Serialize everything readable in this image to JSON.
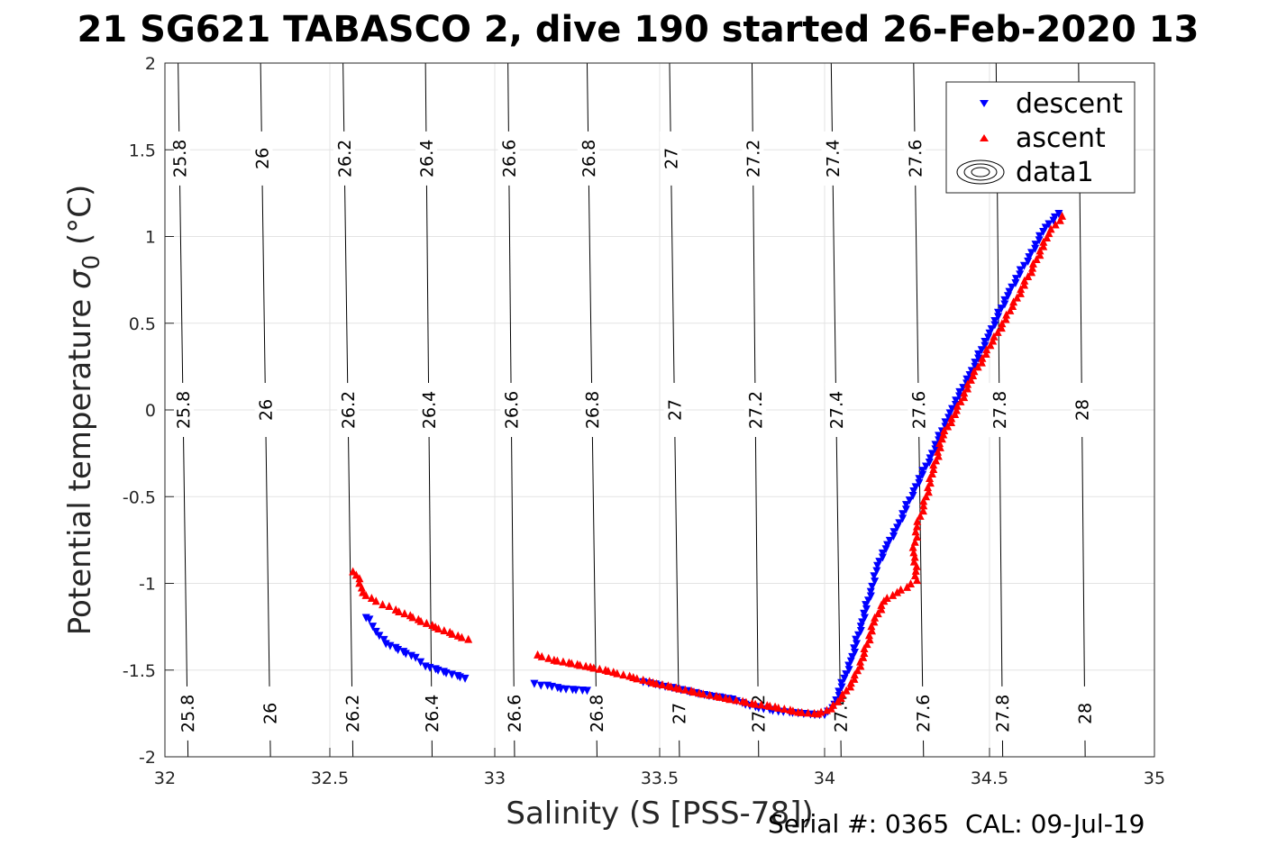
{
  "chart_data": {
    "type": "scatter",
    "title": "21 SG621 TABASCO 2, dive 190 started 26-Feb-2020 13",
    "xlabel": "Salinity (S [PSS-78])",
    "ylabel": "Potential temperature",
    "ylabel_symbol": "σ",
    "ylabel_subscript": "0",
    "ylabel_unit": "(°C)",
    "xlim": [
      32,
      35
    ],
    "ylim": [
      -2,
      2
    ],
    "x_ticks": [
      "32",
      "32.5",
      "33",
      "33.5",
      "34",
      "34.5",
      "35"
    ],
    "y_ticks": [
      "-2",
      "-1.5",
      "-1",
      "-0.5",
      "0",
      "0.5",
      "1",
      "1.5",
      "2"
    ],
    "grid": true,
    "legend_position": "top-right",
    "legend": [
      "descent",
      "ascent",
      "data1"
    ],
    "contours": {
      "levels": [
        25.8,
        26,
        26.2,
        26.4,
        26.6,
        26.8,
        27,
        27.2,
        27.4,
        27.6,
        27.8,
        28
      ],
      "level_labels": [
        "25.8",
        "26",
        "26.2",
        "26.4",
        "26.6",
        "26.8",
        "27",
        "27.2",
        "27.4",
        "27.6",
        "27.8",
        "28"
      ],
      "salinity_at_temp_minus2": [
        32.07,
        32.32,
        32.57,
        32.81,
        33.06,
        33.31,
        33.56,
        33.8,
        34.05,
        34.3,
        34.54,
        34.79
      ],
      "salinity_at_temp_2": [
        32.04,
        32.29,
        32.54,
        32.79,
        33.04,
        33.28,
        33.53,
        33.78,
        34.02,
        34.27,
        34.52,
        34.77
      ]
    },
    "series": [
      {
        "name": "descent",
        "color": "#0000ff",
        "marker": "triangle-down",
        "points": [
          [
            32.61,
            -1.2
          ],
          [
            32.62,
            -1.21
          ],
          [
            32.63,
            -1.25
          ],
          [
            32.64,
            -1.28
          ],
          [
            32.67,
            -1.35
          ],
          [
            32.76,
            -1.43
          ],
          [
            32.79,
            -1.48
          ],
          [
            32.91,
            -1.55
          ],
          [
            33.12,
            -1.58
          ],
          [
            33.14,
            -1.59
          ],
          [
            33.16,
            -1.59
          ],
          [
            33.2,
            -1.61
          ],
          [
            33.28,
            -1.62
          ],
          [
            33.45,
            -1.57
          ],
          [
            33.5,
            -1.59
          ],
          [
            33.55,
            -1.61
          ],
          [
            33.65,
            -1.65
          ],
          [
            33.72,
            -1.67
          ],
          [
            33.76,
            -1.7
          ],
          [
            33.8,
            -1.72
          ],
          [
            33.86,
            -1.74
          ],
          [
            33.92,
            -1.75
          ],
          [
            33.97,
            -1.76
          ],
          [
            34.0,
            -1.76
          ],
          [
            34.03,
            -1.7
          ],
          [
            34.06,
            -1.55
          ],
          [
            34.08,
            -1.45
          ],
          [
            34.11,
            -1.25
          ],
          [
            34.14,
            -1.05
          ],
          [
            34.16,
            -0.9
          ],
          [
            34.19,
            -0.78
          ],
          [
            34.22,
            -0.68
          ],
          [
            34.27,
            -0.47
          ],
          [
            34.32,
            -0.28
          ],
          [
            34.38,
            -0.02
          ],
          [
            34.44,
            0.2
          ],
          [
            34.5,
            0.44
          ],
          [
            34.56,
            0.68
          ],
          [
            34.62,
            0.88
          ],
          [
            34.67,
            1.05
          ],
          [
            34.71,
            1.13
          ]
        ]
      },
      {
        "name": "ascent",
        "color": "#ff0000",
        "marker": "triangle-up",
        "points": [
          [
            32.57,
            -0.93
          ],
          [
            32.58,
            -0.95
          ],
          [
            32.59,
            -0.97
          ],
          [
            32.6,
            -1.05
          ],
          [
            32.64,
            -1.1
          ],
          [
            32.66,
            -1.12
          ],
          [
            32.68,
            -1.13
          ],
          [
            32.7,
            -1.15
          ],
          [
            32.82,
            -1.25
          ],
          [
            32.9,
            -1.31
          ],
          [
            32.92,
            -1.32
          ],
          [
            33.13,
            -1.41
          ],
          [
            33.18,
            -1.44
          ],
          [
            33.29,
            -1.48
          ],
          [
            33.36,
            -1.51
          ],
          [
            33.42,
            -1.54
          ],
          [
            33.48,
            -1.57
          ],
          [
            33.55,
            -1.6
          ],
          [
            33.62,
            -1.63
          ],
          [
            33.7,
            -1.66
          ],
          [
            33.78,
            -1.69
          ],
          [
            33.85,
            -1.71
          ],
          [
            33.92,
            -1.74
          ],
          [
            33.98,
            -1.75
          ],
          [
            34.02,
            -1.72
          ],
          [
            34.05,
            -1.66
          ],
          [
            34.09,
            -1.55
          ],
          [
            34.12,
            -1.4
          ],
          [
            34.15,
            -1.22
          ],
          [
            34.18,
            -1.1
          ],
          [
            34.22,
            -1.05
          ],
          [
            34.25,
            -1.02
          ],
          [
            34.28,
            -0.98
          ],
          [
            34.27,
            -0.82
          ],
          [
            34.28,
            -0.67
          ],
          [
            34.3,
            -0.55
          ],
          [
            34.33,
            -0.34
          ],
          [
            34.36,
            -0.14
          ],
          [
            34.4,
            0.0
          ],
          [
            34.45,
            0.2
          ],
          [
            34.51,
            0.4
          ],
          [
            34.57,
            0.6
          ],
          [
            34.63,
            0.82
          ],
          [
            34.68,
            1.02
          ],
          [
            34.72,
            1.12
          ]
        ]
      }
    ]
  },
  "footer": {
    "serial": "Serial #: 0365  CAL: 09-Jul-19"
  }
}
